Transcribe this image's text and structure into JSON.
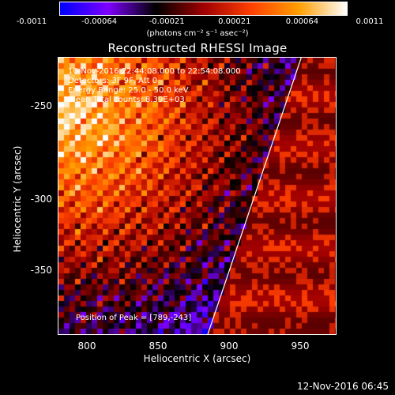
{
  "colorbar": {
    "ticks": [
      "-0.0011",
      "-0.00064",
      "-0.00021",
      "0.00021",
      "0.00064",
      "0.0011"
    ],
    "unit": "(photons cm⁻² s⁻¹ asec⁻²)",
    "stops": [
      "#0000ff",
      "#7f00ff",
      "#000000",
      "#a00000",
      "#ff4000",
      "#ffa000",
      "#ffffff"
    ]
  },
  "title": "Reconstructed RHESSI Image",
  "annotations": {
    "time_range": "10-Nov-2016 22:44:08.000 to 22:54:08.000",
    "detectors": "Detectors: 3F 9F, Att 0",
    "energy": "Energy Range: 25.0 - 50.0 keV",
    "clean": "Clean    Total counts: 8.39E+03",
    "peak": "Position of Peak = [789,-243]"
  },
  "axes": {
    "xlabel": "Heliocentric X (arcsec)",
    "ylabel": "Heliocentric Y (arcsec)",
    "xticks": [
      "800",
      "850",
      "900",
      "950"
    ],
    "yticks": [
      "-250",
      "-300",
      "-350"
    ]
  },
  "chart_data": {
    "type": "heatmap",
    "title": "Reconstructed RHESSI Image",
    "xlabel": "Heliocentric X (arcsec)",
    "ylabel": "Heliocentric Y (arcsec)",
    "xlim": [
      782,
      975
    ],
    "ylim": [
      -395,
      -207
    ],
    "value_range": [
      -0.0011,
      0.0011
    ],
    "peak_position": [
      789,
      -243
    ],
    "limb_line": {
      "x": [
        885,
        950
      ],
      "y": [
        -395,
        -207
      ]
    }
  },
  "footer": {
    "timestamp": "12-Nov-2016 06:45"
  }
}
